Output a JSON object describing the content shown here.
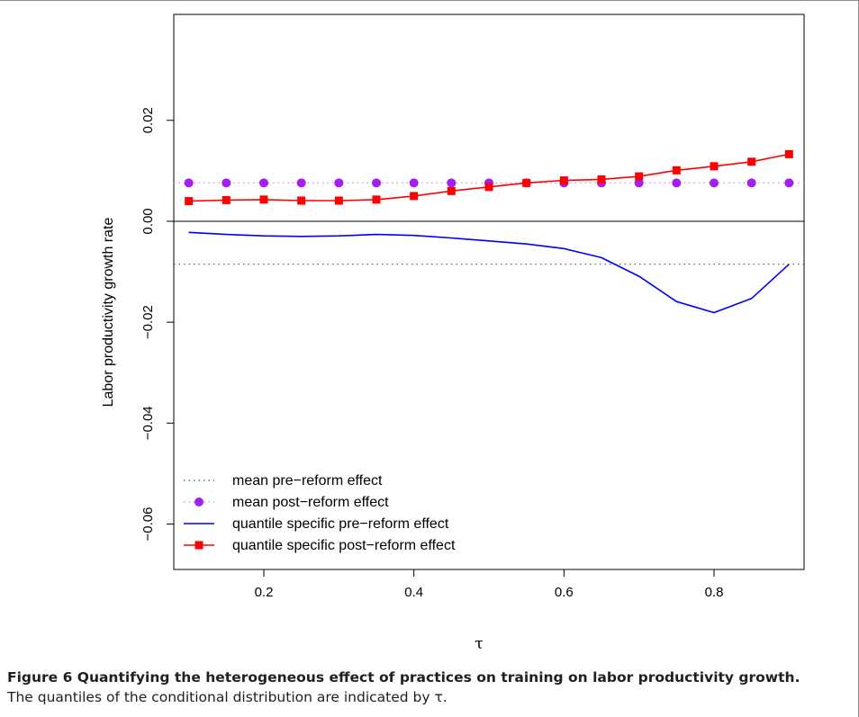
{
  "caption": {
    "title": "Figure 6 Quantifying the heterogeneous effect of practices on training on labor productivity growth.",
    "text": "The quantiles of the conditional distribution are indicated by τ."
  },
  "chart_data": {
    "type": "line",
    "title": "",
    "xlabel": "τ",
    "ylabel": "Labor productivity growth rate",
    "xlim": [
      0.08,
      0.92
    ],
    "ylim": [
      -0.069,
      0.041
    ],
    "xticks": [
      0.2,
      0.4,
      0.6,
      0.8
    ],
    "xtick_labels": [
      "0.2",
      "0.4",
      "0.6",
      "0.8"
    ],
    "yticks": [
      -0.06,
      -0.04,
      -0.02,
      0.0,
      0.02
    ],
    "ytick_labels": [
      "−0.06",
      "−0.04",
      "−0.02",
      "0.00",
      "0.02"
    ],
    "grid": false,
    "zero_line": 0.0,
    "legend_position": "bottom-left",
    "x": [
      0.1,
      0.15,
      0.2,
      0.25,
      0.3,
      0.35,
      0.4,
      0.45,
      0.5,
      0.55,
      0.6,
      0.65,
      0.7,
      0.75,
      0.8,
      0.85,
      0.9
    ],
    "series": [
      {
        "name": "mean pre−reform effect",
        "style": "dotted",
        "color": "#2e8b57",
        "marker": "none",
        "constant": -0.0085
      },
      {
        "name": "mean post−reform effect",
        "style": "dotted",
        "color": "#ee82ee",
        "marker": "circle",
        "marker_color": "#a020f0",
        "constant": 0.0076
      },
      {
        "name": "quantile specific pre−reform effect",
        "style": "solid",
        "color": "#0000ff",
        "marker": "none",
        "values": [
          -0.0022,
          -0.0026,
          -0.0029,
          -0.003,
          -0.0029,
          -0.0026,
          -0.0028,
          -0.0033,
          -0.0039,
          -0.0045,
          -0.0054,
          -0.0072,
          -0.0109,
          -0.0159,
          -0.0181,
          -0.0153,
          -0.0085
        ]
      },
      {
        "name": "quantile specific post−reform effect",
        "style": "solid",
        "color": "#ff0000",
        "marker": "square",
        "values": [
          0.004,
          0.0042,
          0.0043,
          0.0041,
          0.0041,
          0.0043,
          0.005,
          0.006,
          0.0068,
          0.0076,
          0.0081,
          0.0083,
          0.0089,
          0.0101,
          0.0109,
          0.0118,
          0.0133
        ]
      }
    ]
  }
}
